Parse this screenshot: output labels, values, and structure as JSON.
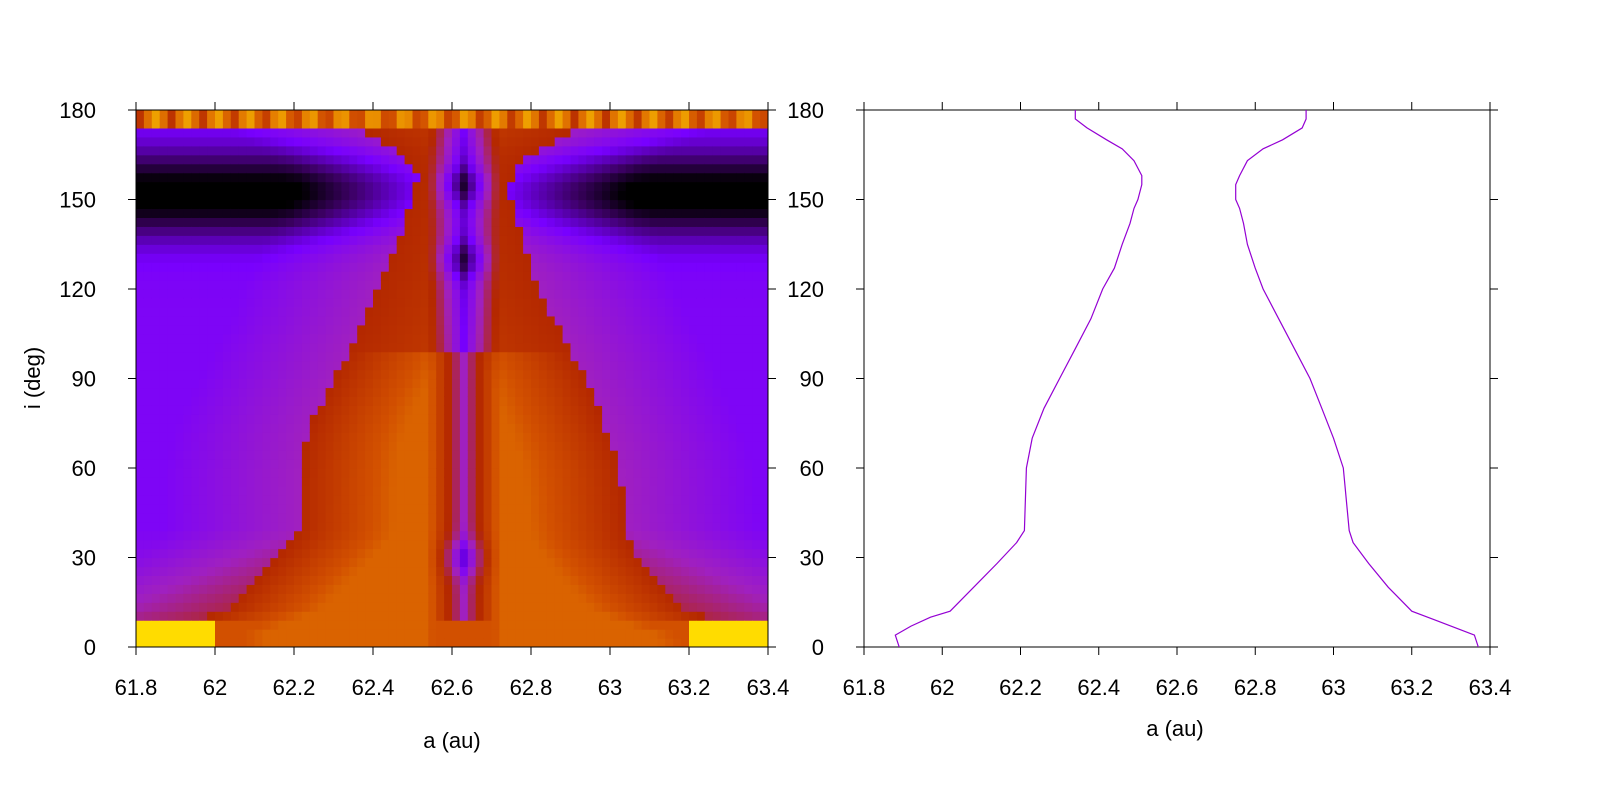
{
  "chart_data": [
    {
      "type": "heatmap",
      "xlabel": "a (au)",
      "ylabel": "i (deg)",
      "xlim": [
        61.8,
        63.4
      ],
      "ylim": [
        0,
        180
      ],
      "xticks": [
        "61.8",
        "62",
        "62.2",
        "62.4",
        "62.6",
        "62.8",
        "63",
        "63.2",
        "63.4"
      ],
      "yticks": [
        "0",
        "30",
        "60",
        "90",
        "120",
        "150",
        "180"
      ],
      "colormap": "gnuplot (black-purple-red-orange-yellow)",
      "colors": [
        "#000000",
        "#3c0064",
        "#7800ff",
        "#a020c0",
        "#b42800",
        "#d25000",
        "#e68200",
        "#ffdc00"
      ],
      "regions": {
        "central_stripe_center_a": 62.63,
        "central_minima_i": [
          30,
          130,
          155
        ],
        "low_band_i": [
          0,
          5
        ],
        "high_band_i": [
          175,
          180
        ]
      }
    },
    {
      "type": "line",
      "xlabel": "a (au)",
      "ylabel": "",
      "xlim": [
        61.8,
        63.4
      ],
      "ylim": [
        0,
        180
      ],
      "xticks": [
        "61.8",
        "62",
        "62.2",
        "62.4",
        "62.6",
        "62.8",
        "63",
        "63.2",
        "63.4"
      ],
      "yticks": [
        "0",
        "30",
        "60",
        "90",
        "120",
        "150",
        "180"
      ],
      "line_color": "#9400d3",
      "series": [
        {
          "x": [
            61.89,
            61.88,
            61.92,
            61.97,
            62.02,
            62.08,
            62.14,
            62.19,
            62.21,
            62.215,
            62.23,
            62.26,
            62.3,
            62.34,
            62.38,
            62.41,
            62.44,
            62.46,
            62.48,
            62.49,
            62.5,
            62.51,
            62.51,
            62.49,
            62.46,
            62.42,
            62.37,
            62.34,
            62.34
          ],
          "y": [
            0,
            4,
            7,
            10,
            12,
            20,
            28,
            35,
            39,
            60,
            70,
            80,
            90,
            100,
            110,
            120,
            127,
            135,
            142,
            147,
            150,
            155,
            158,
            163,
            167,
            170,
            174,
            177,
            180
          ]
        },
        {
          "x": [
            63.37,
            63.36,
            63.32,
            63.26,
            63.2,
            63.14,
            63.09,
            63.05,
            63.04,
            63.025,
            63.0,
            62.97,
            62.94,
            62.9,
            62.86,
            62.82,
            62.8,
            62.78,
            62.77,
            62.76,
            62.75,
            62.75,
            62.76,
            62.78,
            62.82,
            62.87,
            62.92,
            62.93,
            62.93
          ],
          "y": [
            0,
            4,
            6,
            9,
            12,
            20,
            28,
            35,
            39,
            60,
            70,
            80,
            90,
            100,
            110,
            120,
            127,
            135,
            142,
            147,
            150,
            155,
            158,
            163,
            167,
            170,
            174,
            177,
            180
          ]
        }
      ]
    }
  ]
}
